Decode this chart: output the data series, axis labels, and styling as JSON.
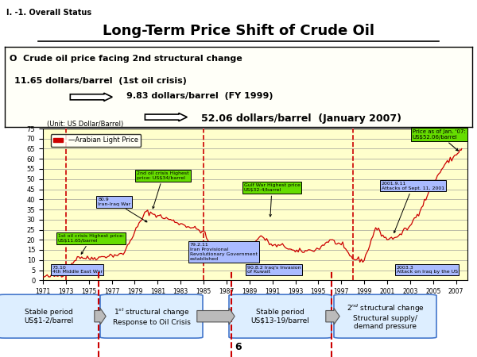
{
  "title": "Long-Term Price Shift of Crude Oil",
  "subtitle_line": "I. -1. Overall Status",
  "bullet_text": "O  Crude oil price facing 2nd structural change",
  "price1": "11.65 dollars/barrel  (1st oil crisis)",
  "price2": "9.83 dollars/barrel  (FY 1999)",
  "price3": "52.06 dollars/barrel  (January 2007)",
  "unit_label": "(Unit: US Dollar/Barrel)",
  "legend_label": "—Arabian Light Price",
  "ylim": [
    0,
    75
  ],
  "yticks": [
    0,
    5,
    10,
    15,
    20,
    25,
    30,
    35,
    40,
    45,
    50,
    55,
    60,
    65,
    70,
    75
  ],
  "vline_years": [
    1973,
    1985,
    1998
  ],
  "page_number": "6",
  "bg_header": "#cccccc",
  "bg_chart": "#ffffcc",
  "bg_box": "#fffff8",
  "line_color": "#cc0000",
  "green_box_color": "#66dd00",
  "blue_box_color": "#aabbff",
  "price_as_of": "Price as of Jan. '07:\nUS$52.06/barrel"
}
